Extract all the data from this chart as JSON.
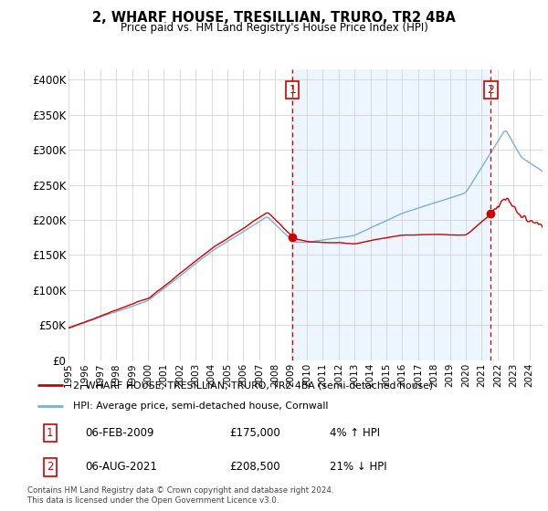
{
  "title": "2, WHARF HOUSE, TRESILLIAN, TRURO, TR2 4BA",
  "subtitle": "Price paid vs. HM Land Registry's House Price Index (HPI)",
  "ylabel_ticks": [
    "£0",
    "£50K",
    "£100K",
    "£150K",
    "£200K",
    "£250K",
    "£300K",
    "£350K",
    "£400K"
  ],
  "ytick_values": [
    0,
    50000,
    100000,
    150000,
    200000,
    250000,
    300000,
    350000,
    400000
  ],
  "ylim": [
    0,
    415000
  ],
  "xlim_start": 1995.0,
  "xlim_end": 2024.83,
  "sale1": {
    "date_num": 2009.09,
    "price": 175000,
    "label": "1"
  },
  "sale2": {
    "date_num": 2021.58,
    "price": 208500,
    "label": "2"
  },
  "legend_line1": "2, WHARF HOUSE, TRESILLIAN, TRURO, TR2 4BA (semi-detached house)",
  "legend_line2": "HPI: Average price, semi-detached house, Cornwall",
  "table_row1": [
    "1",
    "06-FEB-2009",
    "£175,000",
    "4% ↑ HPI"
  ],
  "table_row2": [
    "2",
    "06-AUG-2021",
    "£208,500",
    "21% ↓ HPI"
  ],
  "footer": "Contains HM Land Registry data © Crown copyright and database right 2024.\nThis data is licensed under the Open Government Licence v3.0.",
  "hpi_color": "#7bafd4",
  "price_color": "#cc0000",
  "dashed_color": "#cc0000",
  "shade_color": "#ddeeff",
  "background_color": "#ffffff",
  "grid_color": "#cccccc",
  "xtick_years": [
    1995,
    1996,
    1997,
    1998,
    1999,
    2000,
    2001,
    2002,
    2003,
    2004,
    2005,
    2006,
    2007,
    2008,
    2009,
    2010,
    2011,
    2012,
    2013,
    2014,
    2015,
    2016,
    2017,
    2018,
    2019,
    2020,
    2021,
    2022,
    2023,
    2024
  ]
}
